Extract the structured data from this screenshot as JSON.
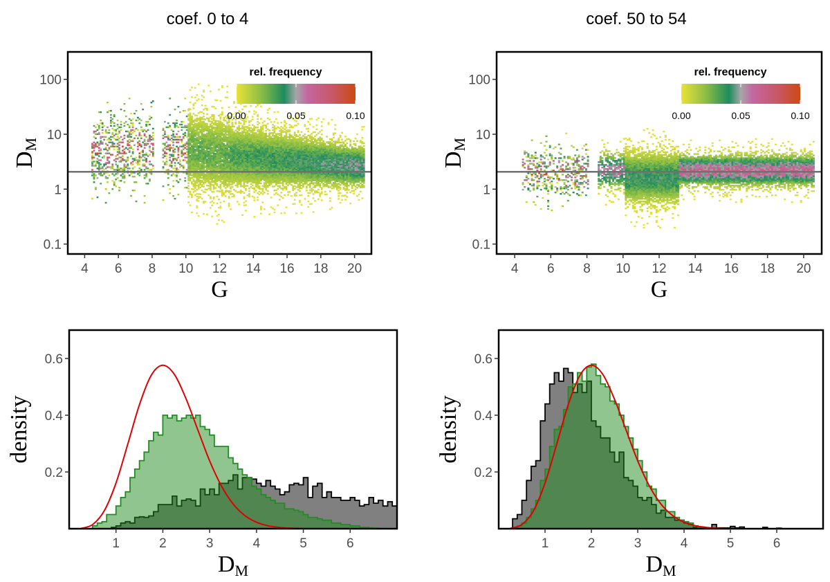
{
  "chart_data": [
    {
      "panel": "top-left",
      "type": "heatmap",
      "title": "coef. 0 to 4",
      "xlabel": "G",
      "ylabel": "D_M",
      "xlim": [
        3,
        21
      ],
      "ylim": [
        0.066,
        316
      ],
      "yscale": "log",
      "xticks": [
        "4",
        "6",
        "8",
        "10",
        "12",
        "14",
        "16",
        "18",
        "20"
      ],
      "yticks": [
        "0.1",
        "1",
        "10",
        "100"
      ],
      "hline": 2.07,
      "hline_color": "#707070",
      "colorbar": {
        "title": "rel. frequency",
        "ticks": [
          "0.00",
          "0.05",
          "0.10"
        ],
        "range": [
          0,
          0.1
        ],
        "placement": "top-right",
        "colors": [
          "#e8e337",
          "#8fbf45",
          "#1e8c5e",
          "#a6a6a6",
          "#c466a0",
          "#c85868",
          "#cc4a12"
        ]
      },
      "grid": false
    },
    {
      "panel": "top-right",
      "type": "heatmap",
      "title": "coef. 50 to 54",
      "xlabel": "G",
      "ylabel": "D_M",
      "xlim": [
        3,
        21
      ],
      "ylim": [
        0.066,
        316
      ],
      "yscale": "log",
      "xticks": [
        "4",
        "6",
        "8",
        "10",
        "12",
        "14",
        "16",
        "18",
        "20"
      ],
      "yticks": [
        "0.1",
        "1",
        "10",
        "100"
      ],
      "hline": 2.07,
      "hline_color": "#707070",
      "colorbar": {
        "title": "rel. frequency",
        "ticks": [
          "0.00",
          "0.05",
          "0.10"
        ],
        "range": [
          0,
          0.1
        ],
        "placement": "top-right",
        "colors": [
          "#e8e337",
          "#8fbf45",
          "#1e8c5e",
          "#a6a6a6",
          "#c466a0",
          "#c85868",
          "#cc4a12"
        ]
      },
      "grid": false
    },
    {
      "panel": "bottom-left",
      "type": "histogram",
      "xlabel": "D_M",
      "ylabel": "density",
      "xlim": [
        0,
        7
      ],
      "ylim": [
        0,
        0.7
      ],
      "xticks": [
        "1",
        "2",
        "3",
        "4",
        "5",
        "6"
      ],
      "yticks": [
        "0.2",
        "0.4",
        "0.6"
      ],
      "bin_width": 0.1,
      "grid": false,
      "series": [
        {
          "color": "#808080",
          "edge": "#000000",
          "start": 0.9,
          "values": [
            0.005,
            0.01,
            0.02,
            0.025,
            0.02,
            0.04,
            0.042,
            0.04,
            0.045,
            0.06,
            0.085,
            0.085,
            0.085,
            0.115,
            0.08,
            0.1,
            0.105,
            0.1,
            0.08,
            0.14,
            0.12,
            0.14,
            0.12,
            0.16,
            0.16,
            0.17,
            0.19,
            0.14,
            0.18,
            0.18,
            0.175,
            0.16,
            0.15,
            0.17,
            0.15,
            0.14,
            0.12,
            0.13,
            0.155,
            0.16,
            0.155,
            0.18,
            0.11,
            0.15,
            0.16,
            0.11,
            0.13,
            0.11,
            0.11,
            0.1,
            0.1,
            0.11,
            0.1,
            0.08,
            0.085,
            0.11,
            0.09,
            0.1,
            0.08,
            0.095,
            0.08
          ]
        },
        {
          "color": "#228b22",
          "edge": "#228b22",
          "start": 0.5,
          "values": [
            0.01,
            0.02,
            0.025,
            0.05,
            0.05,
            0.08,
            0.11,
            0.13,
            0.18,
            0.21,
            0.24,
            0.27,
            0.31,
            0.34,
            0.33,
            0.4,
            0.39,
            0.4,
            0.38,
            0.39,
            0.4,
            0.39,
            0.4,
            0.36,
            0.35,
            0.33,
            0.29,
            0.29,
            0.29,
            0.25,
            0.23,
            0.21,
            0.19,
            0.18,
            0.15,
            0.14,
            0.12,
            0.11,
            0.1,
            0.09,
            0.09,
            0.07,
            0.07,
            0.065,
            0.06,
            0.05,
            0.04,
            0.04,
            0.035,
            0.03,
            0.03,
            0.02,
            0.02,
            0.015,
            0.015,
            0.01,
            0.01,
            0.005,
            0.005,
            0.003,
            0.002
          ]
        }
      ],
      "curve": {
        "color": "#e00000",
        "x": [
          0.25,
          0.5,
          0.75,
          1.0,
          1.25,
          1.5,
          1.75,
          2.0,
          2.25,
          2.5,
          2.75,
          3.0,
          3.25,
          3.5,
          3.75,
          4.0,
          4.25,
          4.5,
          4.75,
          5.0
        ],
        "y": [
          0.001,
          0.0147,
          0.0635,
          0.161,
          0.297,
          0.437,
          0.54,
          0.576,
          0.543,
          0.456,
          0.347,
          0.239,
          0.151,
          0.0874,
          0.0467,
          0.0228,
          0.0103,
          0.0044,
          0.0017,
          0.0006
        ]
      }
    },
    {
      "panel": "bottom-right",
      "type": "histogram",
      "xlabel": "D_M",
      "ylabel": "density",
      "xlim": [
        0,
        7
      ],
      "ylim": [
        0,
        0.7
      ],
      "xticks": [
        "1",
        "2",
        "3",
        "4",
        "5",
        "6"
      ],
      "yticks": [
        "0.2",
        "0.4",
        "0.6"
      ],
      "bin_width": 0.1,
      "grid": false,
      "series": [
        {
          "color": "#808080",
          "edge": "#000000",
          "start": 0.3,
          "values": [
            0.035,
            0.05,
            0.1,
            0.17,
            0.22,
            0.24,
            0.38,
            0.44,
            0.51,
            0.55,
            0.52,
            0.565,
            0.55,
            0.48,
            0.51,
            0.48,
            0.52,
            0.38,
            0.36,
            0.32,
            0.32,
            0.27,
            0.235,
            0.27,
            0.18,
            0.17,
            0.15,
            0.11,
            0.1,
            0.11,
            0.085,
            0.055,
            0.065,
            0.04,
            0.04,
            0.03,
            0.03,
            0.02,
            0.015,
            0.005,
            0.002,
            0.0,
            0.0,
            0.015,
            0.003,
            0.003,
            0.003,
            0.008,
            0.003,
            0.006,
            0.0,
            0.0,
            0.0,
            0.0,
            0.005,
            0.0,
            0.0,
            0.002
          ]
        },
        {
          "color": "#228b22",
          "edge": "#228b22",
          "start": 0.4,
          "values": [
            0.01,
            0.02,
            0.04,
            0.07,
            0.1,
            0.17,
            0.21,
            0.29,
            0.35,
            0.36,
            0.42,
            0.5,
            0.51,
            0.55,
            0.52,
            0.57,
            0.58,
            0.54,
            0.51,
            0.5,
            0.45,
            0.44,
            0.4,
            0.36,
            0.32,
            0.28,
            0.24,
            0.2,
            0.15,
            0.14,
            0.1,
            0.1,
            0.06,
            0.06,
            0.04,
            0.03,
            0.025,
            0.02,
            0.01,
            0.005,
            0.002
          ]
        }
      ],
      "curve": {
        "color": "#e00000",
        "x": [
          0.25,
          0.5,
          0.75,
          1.0,
          1.25,
          1.5,
          1.75,
          2.0,
          2.25,
          2.5,
          2.75,
          3.0,
          3.25,
          3.5,
          3.75,
          4.0,
          4.25,
          4.5,
          4.75,
          5.0
        ],
        "y": [
          0.001,
          0.0147,
          0.0635,
          0.161,
          0.297,
          0.437,
          0.54,
          0.576,
          0.543,
          0.456,
          0.347,
          0.239,
          0.151,
          0.0874,
          0.0467,
          0.0228,
          0.0103,
          0.0044,
          0.0017,
          0.0006
        ]
      }
    }
  ]
}
